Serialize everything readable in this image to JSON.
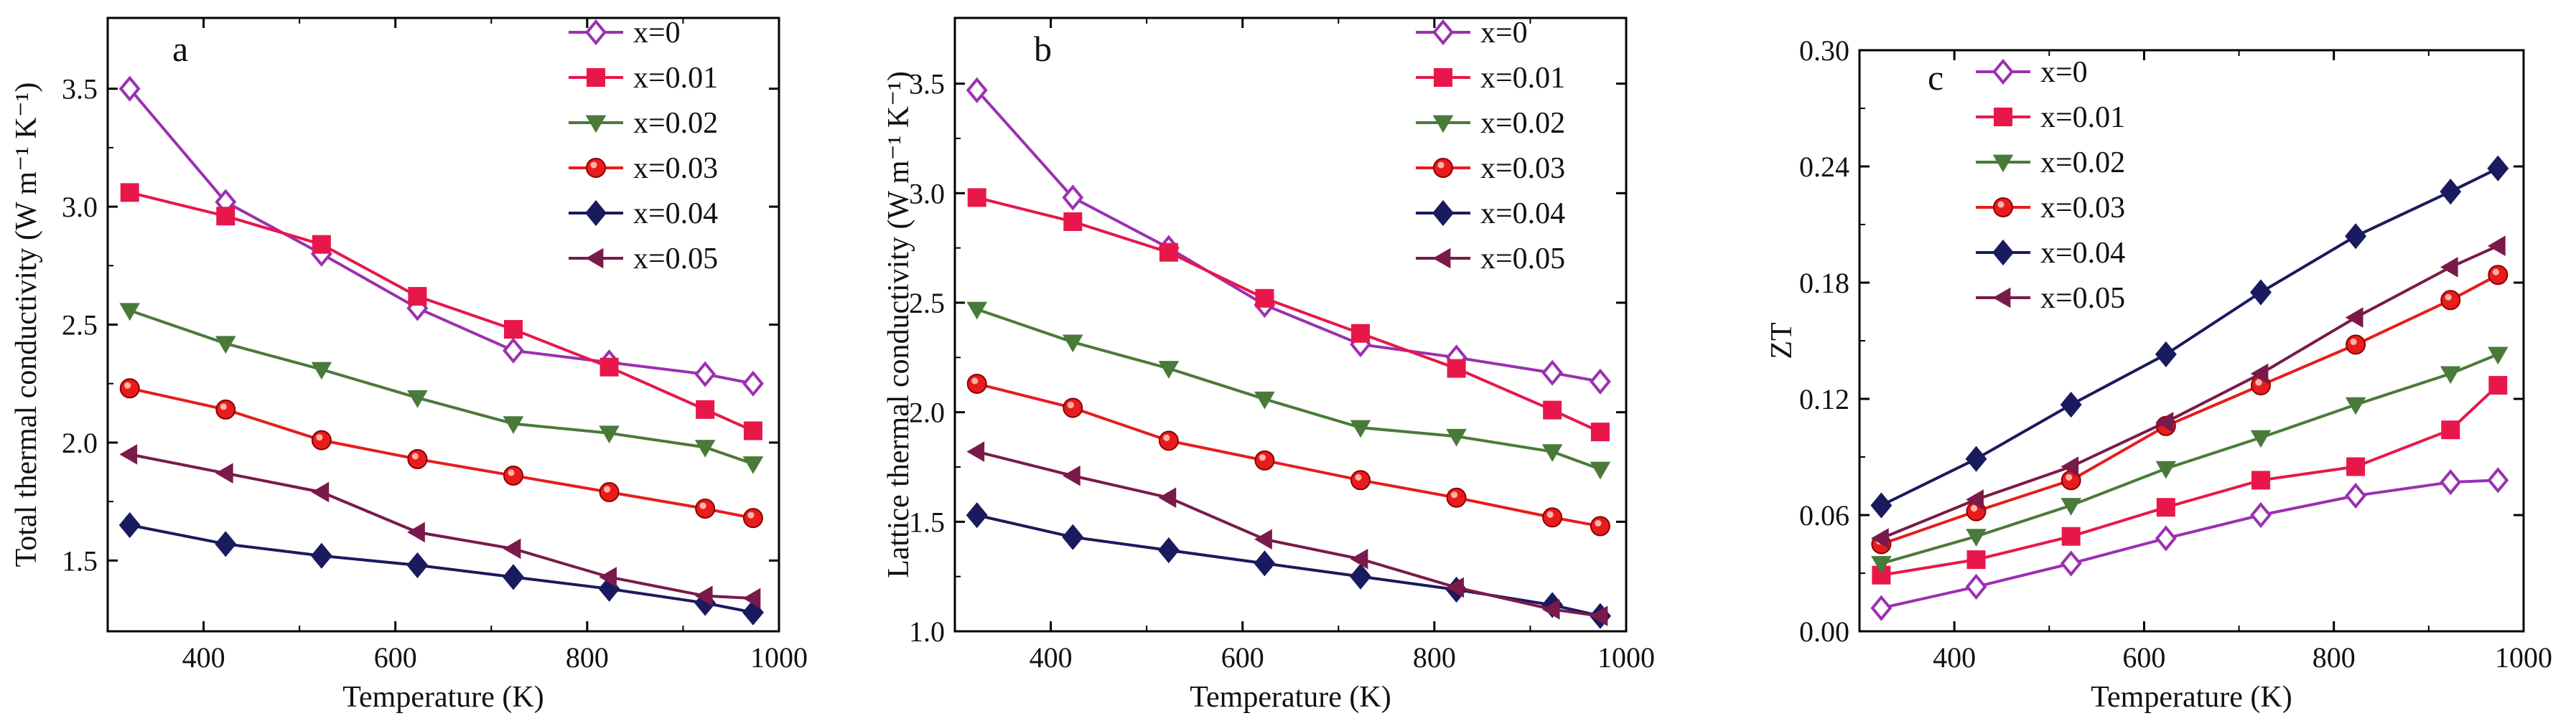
{
  "chart_data": [
    {
      "type": "line",
      "panel_label": "a",
      "xlabel": "Temperature (K)",
      "ylabel": "Total thermal conductivity (W m⁻¹ K⁻¹)",
      "xlim": [
        300,
        1000
      ],
      "ylim": [
        1.2,
        3.8
      ],
      "xticks": [
        400,
        600,
        800,
        1000
      ],
      "yticks": [
        1.5,
        2.0,
        2.5,
        3.0,
        3.5
      ],
      "ytick_labels": [
        "1.5",
        "2.0",
        "2.5",
        "3.0",
        "3.5"
      ],
      "legend_position": "top-right",
      "x": [
        323,
        423,
        523,
        623,
        723,
        823,
        923,
        973
      ],
      "series": [
        {
          "name": "x=0",
          "color": "#9b30b0",
          "marker": "diamond-open",
          "values": [
            3.5,
            3.02,
            2.8,
            2.57,
            2.39,
            2.34,
            2.29,
            2.25
          ]
        },
        {
          "name": "x=0.01",
          "color": "#e8174a",
          "marker": "square",
          "values": [
            3.06,
            2.96,
            2.84,
            2.62,
            2.48,
            2.32,
            2.14,
            2.05
          ]
        },
        {
          "name": "x=0.02",
          "color": "#4a7a3a",
          "marker": "triangle-down",
          "values": [
            2.56,
            2.42,
            2.31,
            2.19,
            2.08,
            2.04,
            1.98,
            1.91
          ]
        },
        {
          "name": "x=0.03",
          "color": "#e81c1c",
          "marker": "circle",
          "values": [
            2.23,
            2.14,
            2.01,
            1.93,
            1.86,
            1.79,
            1.72,
            1.68
          ]
        },
        {
          "name": "x=0.04",
          "color": "#1a1a5e",
          "marker": "diamond",
          "values": [
            1.65,
            1.57,
            1.52,
            1.48,
            1.43,
            1.38,
            1.32,
            1.28
          ]
        },
        {
          "name": "x=0.05",
          "color": "#7a1a4a",
          "marker": "triangle-left",
          "values": [
            1.95,
            1.87,
            1.79,
            1.62,
            1.55,
            1.43,
            1.35,
            1.34
          ]
        }
      ]
    },
    {
      "type": "line",
      "panel_label": "b",
      "xlabel": "Temperature (K)",
      "ylabel": "Lattice thermal conductivity (W m⁻¹ K⁻¹)",
      "xlim": [
        300,
        1000
      ],
      "ylim": [
        1.0,
        3.8
      ],
      "xticks": [
        400,
        600,
        800,
        1000
      ],
      "yticks": [
        1.0,
        1.5,
        2.0,
        2.5,
        3.0,
        3.5
      ],
      "ytick_labels": [
        "1.0",
        "1.5",
        "2.0",
        "2.5",
        "3.0",
        "3.5"
      ],
      "legend_position": "top-right",
      "x": [
        323,
        423,
        523,
        623,
        723,
        823,
        923,
        973
      ],
      "series": [
        {
          "name": "x=0",
          "color": "#9b30b0",
          "marker": "diamond-open",
          "values": [
            3.47,
            2.98,
            2.75,
            2.49,
            2.31,
            2.25,
            2.18,
            2.14
          ]
        },
        {
          "name": "x=0.01",
          "color": "#e8174a",
          "marker": "square",
          "values": [
            2.98,
            2.87,
            2.73,
            2.52,
            2.36,
            2.2,
            2.01,
            1.91
          ]
        },
        {
          "name": "x=0.02",
          "color": "#4a7a3a",
          "marker": "triangle-down",
          "values": [
            2.47,
            2.32,
            2.2,
            2.06,
            1.93,
            1.89,
            1.82,
            1.74
          ]
        },
        {
          "name": "x=0.03",
          "color": "#e81c1c",
          "marker": "circle",
          "values": [
            2.13,
            2.02,
            1.87,
            1.78,
            1.69,
            1.61,
            1.52,
            1.48
          ]
        },
        {
          "name": "x=0.04",
          "color": "#1a1a5e",
          "marker": "diamond",
          "values": [
            1.53,
            1.43,
            1.37,
            1.31,
            1.25,
            1.19,
            1.12,
            1.07
          ]
        },
        {
          "name": "x=0.05",
          "color": "#7a1a4a",
          "marker": "triangle-left",
          "values": [
            1.82,
            1.71,
            1.61,
            1.42,
            1.33,
            1.2,
            1.1,
            1.07
          ]
        }
      ]
    },
    {
      "type": "line",
      "panel_label": "c",
      "xlabel": "Temperature (K)",
      "ylabel": "ZT",
      "xlim": [
        300,
        1000
      ],
      "ylim": [
        0.0,
        0.3
      ],
      "xticks": [
        400,
        600,
        800,
        1000
      ],
      "yticks": [
        0.0,
        0.06,
        0.12,
        0.18,
        0.24,
        0.3
      ],
      "ytick_labels": [
        "0.00",
        "0.06",
        "0.12",
        "0.18",
        "0.24",
        "0.30"
      ],
      "legend_position": "top-left",
      "x": [
        323,
        423,
        523,
        623,
        723,
        823,
        923,
        973
      ],
      "series": [
        {
          "name": "x=0",
          "color": "#9b30b0",
          "marker": "diamond-open",
          "values": [
            0.012,
            0.023,
            0.035,
            0.048,
            0.06,
            0.07,
            0.077,
            0.078
          ]
        },
        {
          "name": "x=0.01",
          "color": "#e8174a",
          "marker": "square",
          "values": [
            0.029,
            0.037,
            0.049,
            0.064,
            0.078,
            0.085,
            0.104,
            0.127
          ]
        },
        {
          "name": "x=0.02",
          "color": "#4a7a3a",
          "marker": "triangle-down",
          "values": [
            0.035,
            0.049,
            0.065,
            0.084,
            0.1,
            0.117,
            0.133,
            0.143
          ]
        },
        {
          "name": "x=0.03",
          "color": "#e81c1c",
          "marker": "circle",
          "values": [
            0.045,
            0.062,
            0.078,
            0.106,
            0.127,
            0.148,
            0.171,
            0.184
          ]
        },
        {
          "name": "x=0.04",
          "color": "#1a1a5e",
          "marker": "diamond",
          "values": [
            0.065,
            0.089,
            0.117,
            0.143,
            0.175,
            0.204,
            0.227,
            0.239
          ]
        },
        {
          "name": "x=0.05",
          "color": "#7a1a4a",
          "marker": "triangle-left",
          "values": [
            0.048,
            0.068,
            0.085,
            0.108,
            0.133,
            0.162,
            0.188,
            0.199
          ]
        }
      ]
    }
  ]
}
